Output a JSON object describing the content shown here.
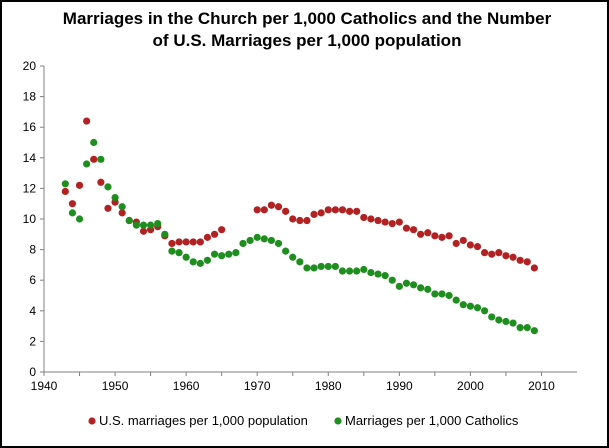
{
  "chart_data": {
    "type": "scatter",
    "title_line1": "Marriages in the Church per 1,000 Catholics and the Number",
    "title_line2": "of U.S. Marriages per 1,000 population",
    "xlabel": "",
    "ylabel": "",
    "xlim": [
      1940,
      2015
    ],
    "ylim": [
      0,
      20
    ],
    "x_ticks": [
      1940,
      1950,
      1960,
      1970,
      1980,
      1990,
      2000,
      2010
    ],
    "y_ticks": [
      0,
      2,
      4,
      6,
      8,
      10,
      12,
      14,
      16,
      18,
      20
    ],
    "grid": false,
    "legend_position": "bottom",
    "series": [
      {
        "name": "U.S. marriages per 1,000 population",
        "color": "#b22222",
        "x": [
          1943,
          1944,
          1945,
          1946,
          1947,
          1948,
          1949,
          1950,
          1951,
          1952,
          1953,
          1954,
          1955,
          1956,
          1957,
          1958,
          1959,
          1960,
          1961,
          1962,
          1963,
          1964,
          1965,
          1970,
          1971,
          1972,
          1973,
          1974,
          1975,
          1976,
          1977,
          1978,
          1979,
          1980,
          1981,
          1982,
          1983,
          1984,
          1985,
          1986,
          1987,
          1988,
          1989,
          1990,
          1991,
          1992,
          1993,
          1994,
          1995,
          1996,
          1997,
          1998,
          1999,
          2000,
          2001,
          2002,
          2003,
          2004,
          2005,
          2006,
          2007,
          2008,
          2009
        ],
        "values": [
          11.8,
          11.0,
          12.2,
          16.4,
          13.9,
          12.4,
          10.7,
          11.1,
          10.4,
          9.9,
          9.8,
          9.2,
          9.3,
          9.5,
          8.9,
          8.4,
          8.5,
          8.5,
          8.5,
          8.5,
          8.8,
          9.0,
          9.3,
          10.6,
          10.6,
          10.9,
          10.8,
          10.5,
          10.0,
          9.9,
          9.9,
          10.3,
          10.4,
          10.6,
          10.6,
          10.6,
          10.5,
          10.5,
          10.1,
          10.0,
          9.9,
          9.8,
          9.7,
          9.8,
          9.4,
          9.3,
          9.0,
          9.1,
          8.9,
          8.8,
          8.9,
          8.4,
          8.6,
          8.3,
          8.2,
          7.8,
          7.7,
          7.8,
          7.6,
          7.5,
          7.3,
          7.2,
          6.8
        ]
      },
      {
        "name": "Marriages per 1,000 Catholics",
        "color": "#1e8f1e",
        "x": [
          1943,
          1944,
          1945,
          1946,
          1947,
          1948,
          1949,
          1950,
          1951,
          1952,
          1953,
          1954,
          1955,
          1956,
          1957,
          1958,
          1959,
          1960,
          1961,
          1962,
          1963,
          1964,
          1965,
          1966,
          1967,
          1968,
          1969,
          1970,
          1971,
          1972,
          1973,
          1974,
          1975,
          1976,
          1977,
          1978,
          1979,
          1980,
          1981,
          1982,
          1983,
          1984,
          1985,
          1986,
          1987,
          1988,
          1989,
          1990,
          1991,
          1992,
          1993,
          1994,
          1995,
          1996,
          1997,
          1998,
          1999,
          2000,
          2001,
          2002,
          2003,
          2004,
          2005,
          2006,
          2007,
          2008,
          2009
        ],
        "values": [
          12.3,
          10.4,
          10.0,
          13.6,
          15.0,
          13.9,
          12.1,
          11.4,
          10.8,
          9.9,
          9.6,
          9.6,
          9.6,
          9.7,
          9.0,
          7.9,
          7.8,
          7.5,
          7.2,
          7.1,
          7.3,
          7.7,
          7.6,
          7.7,
          7.8,
          8.4,
          8.6,
          8.8,
          8.7,
          8.6,
          8.4,
          7.9,
          7.5,
          7.2,
          6.8,
          6.8,
          6.9,
          6.9,
          6.9,
          6.6,
          6.6,
          6.6,
          6.7,
          6.5,
          6.4,
          6.3,
          6.0,
          5.6,
          5.8,
          5.7,
          5.5,
          5.4,
          5.1,
          5.1,
          5.0,
          4.7,
          4.4,
          4.3,
          4.2,
          4.0,
          3.6,
          3.4,
          3.3,
          3.2,
          2.9,
          2.9,
          2.7
        ]
      }
    ]
  }
}
